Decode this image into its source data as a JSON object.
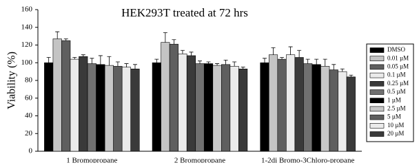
{
  "chart_data": {
    "type": "bar",
    "title": "HEK293T treated at 72 hrs",
    "y_label": "Viability (%)",
    "categories": [
      "1 Bromopropane",
      "2 Bromopropane",
      "1-2di Bromo-3Chloro-propane"
    ],
    "ylim": [
      0,
      160
    ],
    "yticks": [
      0,
      20,
      40,
      60,
      80,
      100,
      120,
      140,
      160
    ],
    "series": [
      {
        "name": "DMSO",
        "color": "#000000",
        "values": [
          100,
          100,
          100
        ],
        "errors": [
          6,
          4,
          5
        ]
      },
      {
        "name": "0.01 µM",
        "color": "#c4c4c4",
        "values": [
          127,
          123,
          109
        ],
        "errors": [
          8,
          11,
          8
        ]
      },
      {
        "name": "0.05 µM",
        "color": "#5f5f5f",
        "values": [
          125,
          121,
          104
        ],
        "errors": [
          2,
          5,
          2
        ]
      },
      {
        "name": "0.1 µM",
        "color": "#ebebeb",
        "values": [
          104,
          110,
          109
        ],
        "errors": [
          2,
          4,
          9
        ]
      },
      {
        "name": "0.25 µM",
        "color": "#3a3a3a",
        "values": [
          107,
          108,
          106
        ],
        "errors": [
          2,
          4,
          8
        ]
      },
      {
        "name": "0.5 µM",
        "color": "#707070",
        "values": [
          99,
          99,
          99
        ],
        "errors": [
          6,
          3,
          5
        ]
      },
      {
        "name": "1 µM",
        "color": "#000000",
        "values": [
          98,
          99,
          98
        ],
        "errors": [
          10,
          2,
          6
        ]
      },
      {
        "name": "2.5 µM",
        "color": "#c8c8c8",
        "values": [
          97,
          97,
          96
        ],
        "errors": [
          10,
          2,
          8
        ]
      },
      {
        "name": "5 µM",
        "color": "#5f5f5f",
        "values": [
          96,
          98,
          92
        ],
        "errors": [
          5,
          5,
          6
        ]
      },
      {
        "name": "10 µM",
        "color": "#ebebeb",
        "values": [
          95,
          96,
          90
        ],
        "errors": [
          4,
          5,
          3
        ]
      },
      {
        "name": "20 µM",
        "color": "#3a3a3a",
        "values": [
          93,
          93,
          84
        ],
        "errors": [
          5,
          2,
          2
        ]
      }
    ]
  }
}
